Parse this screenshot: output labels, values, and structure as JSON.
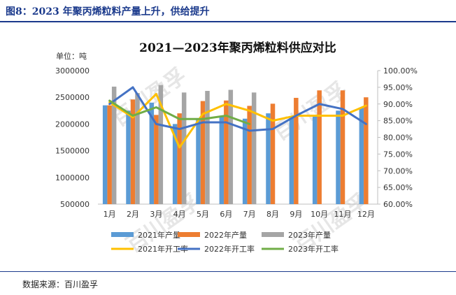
{
  "figure": {
    "title": "图8：2023 年聚丙烯粒料产量上升，供给提升",
    "source": "数据来源：百川盈孚"
  },
  "watermark": "百川盈孚",
  "colors": {
    "2021年产量": "#5b9bd5",
    "2022年产量": "#ed7d31",
    "2023年产量": "#a5a5a5",
    "2021年开工率": "#ffc000",
    "2022年开工率": "#4472c4",
    "2023年开工率": "#70ad47"
  },
  "chart_data": {
    "type": "bar",
    "title": "2021—2023年聚丙烯粒料供应对比",
    "ylabel": "单位：吨",
    "categories": [
      "1月",
      "2月",
      "3月",
      "4月",
      "5月",
      "6月",
      "7月",
      "8月",
      "9月",
      "10月",
      "11月",
      "12月"
    ],
    "ylim": [
      500000,
      3000000
    ],
    "y2lim": [
      60,
      100
    ],
    "yticks": [
      "3000000",
      "2500000",
      "2000000",
      "1500000",
      "1000000",
      "500000"
    ],
    "y2ticks": [
      "100.00%",
      "95.00%",
      "90.00%",
      "85.00%",
      "80.00%",
      "75.00%",
      "70.00%",
      "65.00%",
      "60.00%"
    ],
    "bar_series": [
      {
        "name": "2021年产量",
        "values": [
          2350000,
          2250000,
          2400000,
          2000000,
          2100000,
          2150000,
          2100000,
          2200000,
          2150000,
          2150000,
          2250000,
          2300000
        ]
      },
      {
        "name": "2022年产量",
        "values": [
          2350000,
          2460000,
          2170000,
          2200000,
          2430000,
          2440000,
          2340000,
          2380000,
          2490000,
          2630000,
          2630000,
          2500000
        ]
      },
      {
        "name": "2023年产量",
        "values": [
          2700000,
          2580000,
          2730000,
          2590000,
          2620000,
          2640000,
          2590000,
          null,
          null,
          null,
          null,
          null
        ]
      }
    ],
    "line_series": [
      {
        "name": "2021年开工率",
        "values": [
          90.5,
          86.0,
          93.0,
          77.0,
          87.0,
          90.0,
          88.0,
          85.0,
          86.5,
          86.5,
          86.5,
          89.5
        ]
      },
      {
        "name": "2022年开工率",
        "values": [
          90.0,
          95.0,
          84.0,
          82.5,
          84.5,
          84.5,
          82.0,
          82.5,
          86.5,
          90.0,
          88.5,
          84.0
        ]
      },
      {
        "name": "2023年开工率",
        "values": [
          91.0,
          86.5,
          89.0,
          85.5,
          85.5,
          86.5,
          84.0,
          null,
          null,
          null,
          null,
          null
        ]
      }
    ],
    "legend": [
      "2021年产量",
      "2022年产量",
      "2023年产量",
      "2021年开工率",
      "2022年开工率",
      "2023年开工率"
    ],
    "legend_position": "bottom"
  }
}
